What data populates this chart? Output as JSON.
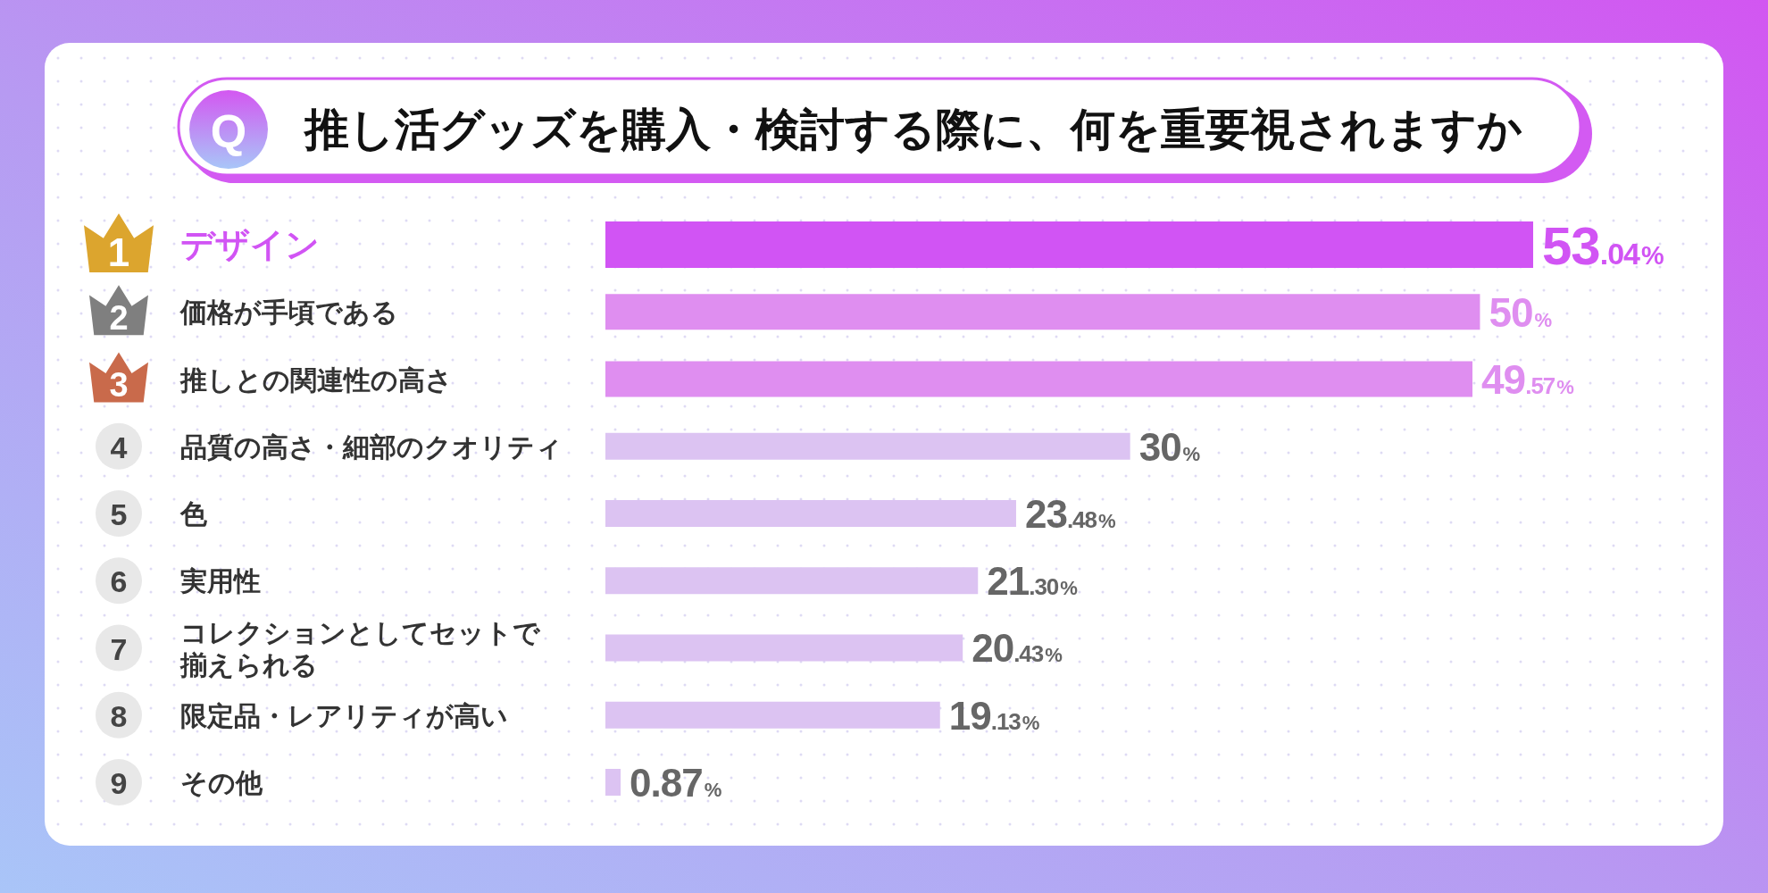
{
  "chart_data": {
    "type": "bar",
    "orientation": "horizontal",
    "title": "推し活グッズを購入・検討する際に、何を重要視されますか",
    "categories": [
      "デザイン",
      "価格が手頃である",
      "推しとの関連性の高さ",
      "品質の高さ・細部のクオリティ",
      "色",
      "実用性",
      "コレクションとしてセットで揃えられる",
      "限定品・レアリティが高い",
      "その他"
    ],
    "values": [
      53.04,
      50,
      49.57,
      30,
      23.48,
      21.3,
      20.43,
      19.13,
      0.87
    ],
    "value_labels": [
      "53.04%",
      "50%",
      "49.57%",
      "30%",
      "23.48%",
      "21.30%",
      "20.43%",
      "19.13%",
      "0.87%"
    ],
    "colors": [
      "#d154f4",
      "#df8ef0",
      "#df8ef0",
      "#dcc3f2",
      "#dcc3f2",
      "#dcc3f2",
      "#dcc3f2",
      "#dcc3f2",
      "#dcc3f2"
    ],
    "tick_labels": "y",
    "annotations": [
      "Q",
      "1",
      "2",
      "3",
      "4",
      "5",
      "6",
      "7",
      "8",
      "9"
    ]
  }
}
